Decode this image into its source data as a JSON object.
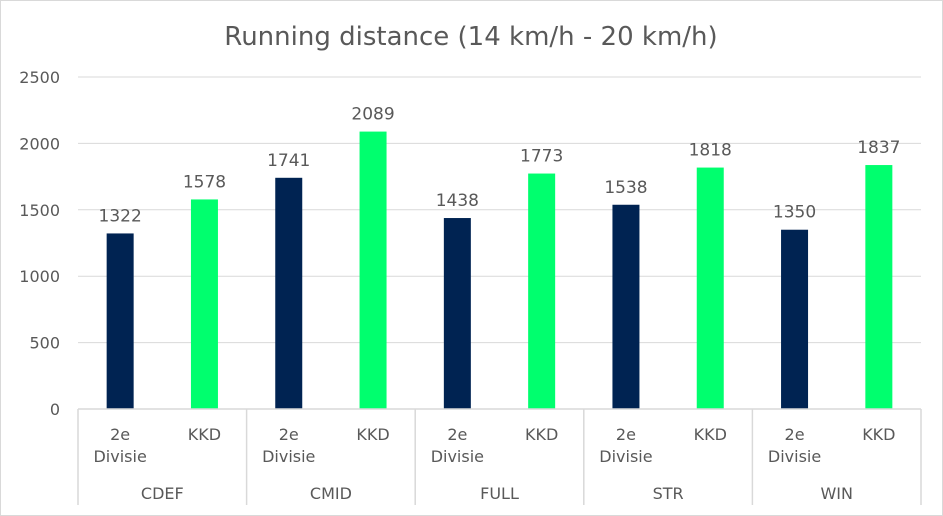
{
  "chart_data": {
    "type": "bar",
    "title": "Running distance (14 km/h - 20 km/h)",
    "groups": [
      "CDEF",
      "CMID",
      "FULL",
      "STR",
      "WIN"
    ],
    "subcategories": [
      "2e Divisie",
      "KKD"
    ],
    "series": [
      {
        "color": "#002352",
        "values": [
          1322,
          1741,
          1438,
          1538,
          1350
        ]
      },
      {
        "color": "#00FF6E",
        "values": [
          1578,
          2089,
          1773,
          1818,
          1837
        ]
      }
    ],
    "yticks": [
      0,
      500,
      1000,
      1500,
      2000,
      2500
    ],
    "ylim": [
      0,
      2500
    ],
    "grid": true,
    "data_labels": true,
    "legend": "none"
  }
}
